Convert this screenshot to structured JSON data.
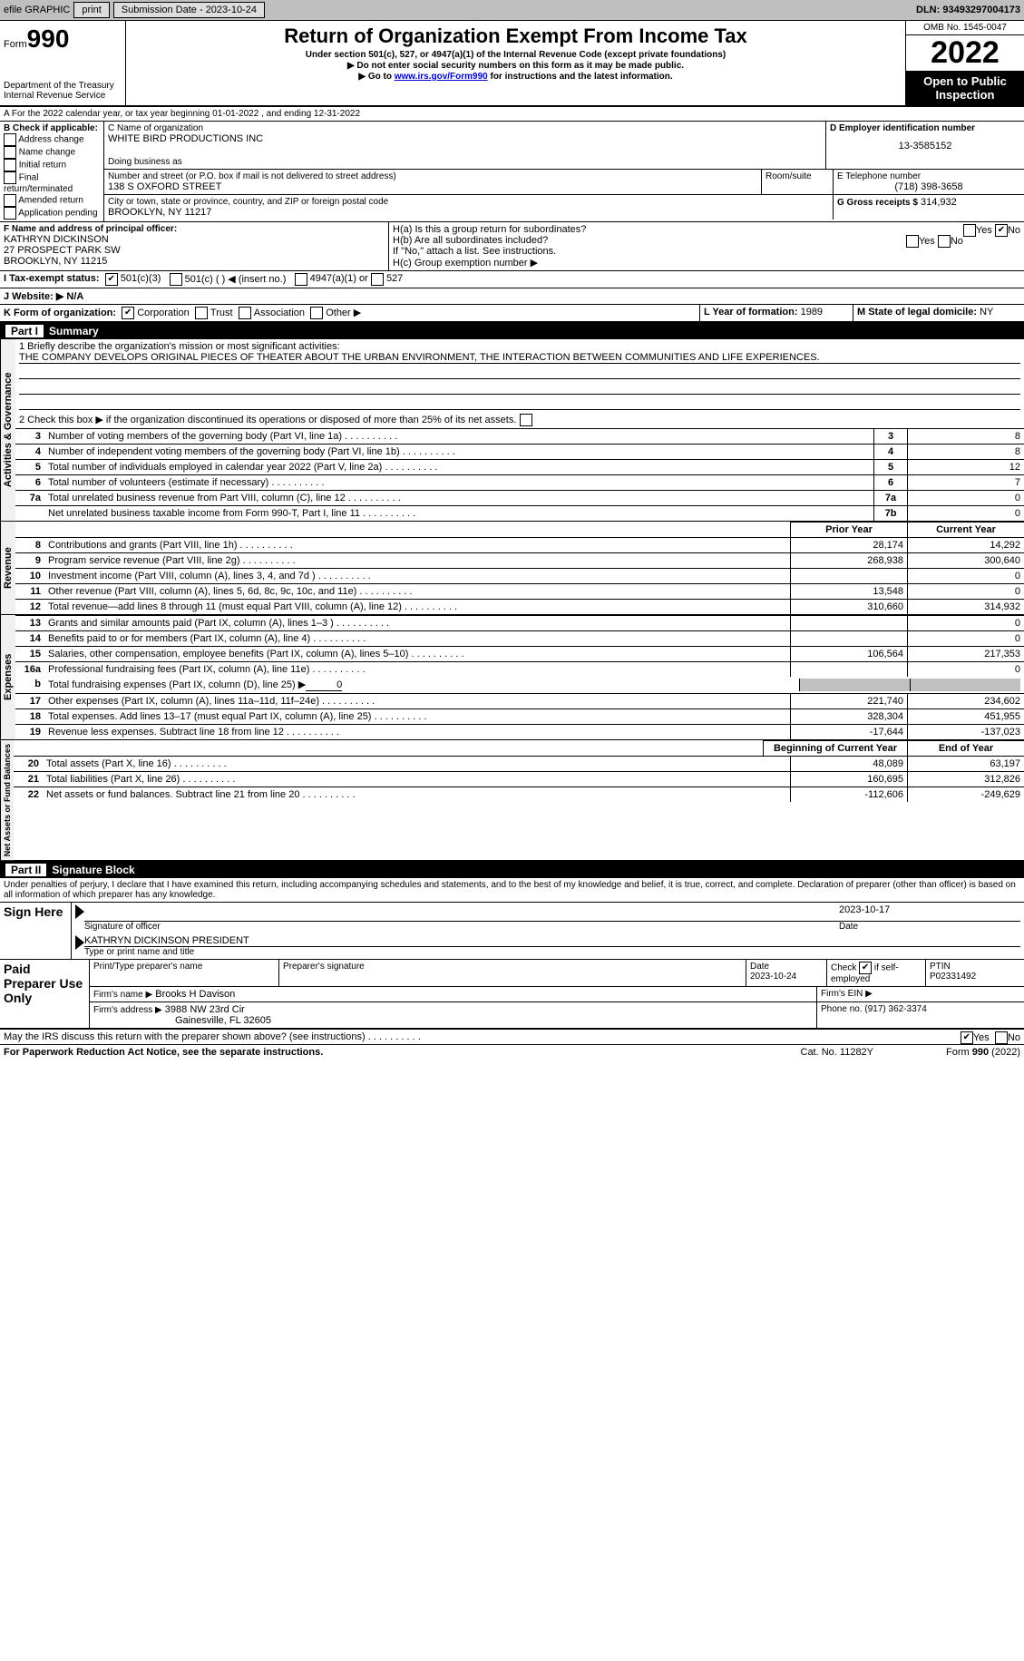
{
  "topbar": {
    "efile_label": "efile GRAPHIC",
    "print_btn": "print",
    "submission_label": "Submission Date - 2023-10-24",
    "dln_label": "DLN: 93493297004173"
  },
  "header": {
    "form_word": "Form",
    "form_no": "990",
    "dept1": "Department of the Treasury",
    "dept2": "Internal Revenue Service",
    "title": "Return of Organization Exempt From Income Tax",
    "sub1": "Under section 501(c), 527, or 4947(a)(1) of the Internal Revenue Code (except private foundations)",
    "sub2": "▶ Do not enter social security numbers on this form as it may be made public.",
    "sub3_a": "▶ Go to ",
    "sub3_link": "www.irs.gov/Form990",
    "sub3_b": " for instructions and the latest information.",
    "omb": "OMB No. 1545-0047",
    "year": "2022",
    "open": "Open to Public Inspection"
  },
  "lineA": "A For the 2022 calendar year, or tax year beginning 01-01-2022   , and ending 12-31-2022",
  "boxB": {
    "hdr": "B Check if applicable:",
    "o1": "Address change",
    "o2": "Name change",
    "o3": "Initial return",
    "o4": "Final return/terminated",
    "o5": "Amended return",
    "o6": "Application pending"
  },
  "boxC": {
    "c_lbl": "C Name of organization",
    "c_val": "WHITE BIRD PRODUCTIONS INC",
    "dba_lbl": "Doing business as",
    "addr_lbl": "Number and street (or P.O. box if mail is not delivered to street address)",
    "addr_val": "138 S OXFORD STREET",
    "room_lbl": "Room/suite",
    "city_lbl": "City or town, state or province, country, and ZIP or foreign postal code",
    "city_val": "BROOKLYN, NY  11217"
  },
  "boxD": {
    "lbl": "D Employer identification number",
    "val": "13-3585152"
  },
  "boxE": {
    "lbl": "E Telephone number",
    "val": "(718) 398-3658"
  },
  "boxG": {
    "lbl": "G Gross receipts $",
    "val": "314,932"
  },
  "boxF": {
    "lbl": "F Name and address of principal officer:",
    "l1": "KATHRYN DICKINSON",
    "l2": "27 PROSPECT PARK SW",
    "l3": "BROOKLYN, NY  11215"
  },
  "boxH": {
    "ha": "H(a)  Is this a group return for subordinates?",
    "hb": "H(b)  Are all subordinates included?",
    "hb2": "If \"No,\" attach a list. See instructions.",
    "hc": "H(c)  Group exemption number ▶",
    "yes": "Yes",
    "no": "No"
  },
  "lineI": {
    "lbl": "I   Tax-exempt status:",
    "o1": "501(c)(3)",
    "o2": "501(c) (  ) ◀ (insert no.)",
    "o3": "4947(a)(1) or",
    "o4": "527"
  },
  "lineJ": "J    Website: ▶   N/A",
  "lineK": {
    "lbl": "K Form of organization:",
    "o1": "Corporation",
    "o2": "Trust",
    "o3": "Association",
    "o4": "Other ▶"
  },
  "lineL": {
    "lbl": "L Year of formation:",
    "val": "1989"
  },
  "lineM": {
    "lbl": "M State of legal domicile:",
    "val": "NY"
  },
  "part1": {
    "hdr": "Part I",
    "title": "Summary"
  },
  "s1": {
    "q1_lbl": "1  Briefly describe the organization's mission or most significant activities:",
    "q1_val": "THE COMPANY DEVELOPS ORIGINAL PIECES OF THEATER ABOUT THE URBAN ENVIRONMENT, THE INTERACTION BETWEEN COMMUNITIES AND LIFE EXPERIENCES.",
    "q2": "2   Check this box ▶        if the organization discontinued its operations or disposed of more than 25% of its net assets.",
    "rows": [
      {
        "n": "3",
        "t": "Number of voting members of the governing body (Part VI, line 1a)",
        "box": "3",
        "v": "8"
      },
      {
        "n": "4",
        "t": "Number of independent voting members of the governing body (Part VI, line 1b)",
        "box": "4",
        "v": "8"
      },
      {
        "n": "5",
        "t": "Total number of individuals employed in calendar year 2022 (Part V, line 2a)",
        "box": "5",
        "v": "12"
      },
      {
        "n": "6",
        "t": "Total number of volunteers (estimate if necessary)",
        "box": "6",
        "v": "7"
      },
      {
        "n": "7a",
        "t": "Total unrelated business revenue from Part VIII, column (C), line 12",
        "box": "7a",
        "v": "0"
      },
      {
        "n": "",
        "t": "Net unrelated business taxable income from Form 990-T, Part I, line 11",
        "box": "7b",
        "v": "0"
      }
    ],
    "pycy_hdr_p": "Prior Year",
    "pycy_hdr_c": "Current Year",
    "vert_act": "Activities & Governance",
    "vert_rev": "Revenue",
    "vert_exp": "Expenses",
    "vert_na": "Net Assets or Fund Balances",
    "rev": [
      {
        "n": "8",
        "t": "Contributions and grants (Part VIII, line 1h)",
        "p": "28,174",
        "c": "14,292"
      },
      {
        "n": "9",
        "t": "Program service revenue (Part VIII, line 2g)",
        "p": "268,938",
        "c": "300,640"
      },
      {
        "n": "10",
        "t": "Investment income (Part VIII, column (A), lines 3, 4, and 7d )",
        "p": "",
        "c": "0"
      },
      {
        "n": "11",
        "t": "Other revenue (Part VIII, column (A), lines 5, 6d, 8c, 9c, 10c, and 11e)",
        "p": "13,548",
        "c": "0"
      },
      {
        "n": "12",
        "t": "Total revenue—add lines 8 through 11 (must equal Part VIII, column (A), line 12)",
        "p": "310,660",
        "c": "314,932"
      }
    ],
    "exp": [
      {
        "n": "13",
        "t": "Grants and similar amounts paid (Part IX, column (A), lines 1–3 )",
        "p": "",
        "c": "0"
      },
      {
        "n": "14",
        "t": "Benefits paid to or for members (Part IX, column (A), line 4)",
        "p": "",
        "c": "0"
      },
      {
        "n": "15",
        "t": "Salaries, other compensation, employee benefits (Part IX, column (A), lines 5–10)",
        "p": "106,564",
        "c": "217,353"
      },
      {
        "n": "16a",
        "t": "Professional fundraising fees (Part IX, column (A), line 11e)",
        "p": "",
        "c": "0"
      }
    ],
    "exp_b": {
      "n": "b",
      "t": "Total fundraising expenses (Part IX, column (D), line 25) ▶",
      "v": "0"
    },
    "exp2": [
      {
        "n": "17",
        "t": "Other expenses (Part IX, column (A), lines 11a–11d, 11f–24e)",
        "p": "221,740",
        "c": "234,602"
      },
      {
        "n": "18",
        "t": "Total expenses. Add lines 13–17 (must equal Part IX, column (A), line 25)",
        "p": "328,304",
        "c": "451,955"
      },
      {
        "n": "19",
        "t": "Revenue less expenses. Subtract line 18 from line 12",
        "p": "-17,644",
        "c": "-137,023"
      }
    ],
    "na_hdr_b": "Beginning of Current Year",
    "na_hdr_e": "End of Year",
    "na": [
      {
        "n": "20",
        "t": "Total assets (Part X, line 16)",
        "p": "48,089",
        "c": "63,197"
      },
      {
        "n": "21",
        "t": "Total liabilities (Part X, line 26)",
        "p": "160,695",
        "c": "312,826"
      },
      {
        "n": "22",
        "t": "Net assets or fund balances. Subtract line 21 from line 20",
        "p": "-112,606",
        "c": "-249,629"
      }
    ]
  },
  "part2": {
    "hdr": "Part II",
    "title": "Signature Block",
    "decl": "Under penalties of perjury, I declare that I have examined this return, including accompanying schedules and statements, and to the best of my knowledge and belief, it is true, correct, and complete. Declaration of preparer (other than officer) is based on all information of which preparer has any knowledge."
  },
  "sign": {
    "here": "Sign Here",
    "sig_lbl": "Signature of officer",
    "date_lbl": "Date",
    "date": "2023-10-17",
    "name": "KATHRYN DICKINSON PRESIDENT",
    "name_lbl": "Type or print name and title"
  },
  "paid": {
    "hdr": "Paid Preparer Use Only",
    "c1": "Print/Type preparer's name",
    "c2": "Preparer's signature",
    "c3": "Date",
    "c3v": "2023-10-24",
    "c4": "Check        if self-employed",
    "c5": "PTIN",
    "c5v": "P02331492",
    "firm_lbl": "Firm's name   ▶",
    "firm": "Brooks H Davison",
    "ein": "Firm's EIN ▶",
    "addr_lbl": "Firm's address ▶",
    "addr1": "3988 NW 23rd Cir",
    "addr2": "Gainesville, FL  32605",
    "ph_lbl": "Phone no.",
    "ph": "(917) 362-3374"
  },
  "footer": {
    "discuss": "May the IRS discuss this return with the preparer shown above? (see instructions)",
    "yes": "Yes",
    "no": "No",
    "pra": "For Paperwork Reduction Act Notice, see the separate instructions.",
    "cat": "Cat. No. 11282Y",
    "form": "Form 990 (2022)"
  }
}
